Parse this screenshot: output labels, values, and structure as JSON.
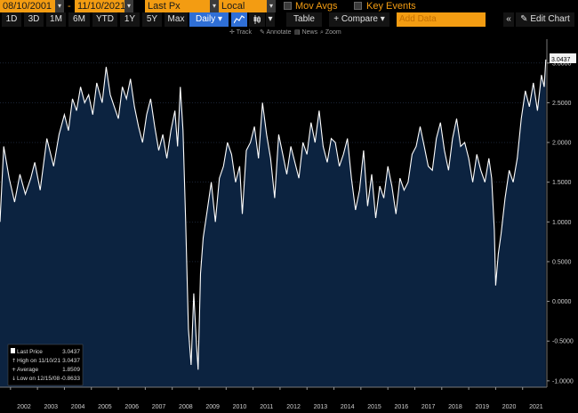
{
  "toolbar": {
    "start_date": "08/10/2001",
    "end_date": "11/10/2021",
    "separator": "-",
    "field": "Last Px",
    "currency": "Local CCY",
    "mov_avgs": "Mov Avgs",
    "key_events": "Key Events",
    "ranges": [
      "1D",
      "3D",
      "1M",
      "6M",
      "YTD",
      "1Y",
      "5Y",
      "Max"
    ],
    "freq": "Daily",
    "table": "Table",
    "compare": "+ Compare",
    "add_data_placeholder": "Add Data",
    "edit_chart": "Edit Chart",
    "tools": [
      "Track",
      "Annotate",
      "News",
      "Zoom"
    ]
  },
  "colors": {
    "accent": "#f39c12",
    "plot_bg": "#0c2340",
    "line": "#ffffff",
    "selected": "#2f6fd6"
  },
  "chart_data": {
    "type": "line",
    "title": "",
    "xlabel": "",
    "ylabel": "",
    "ylim": [
      -1.08,
      3.3
    ],
    "y_ticks": [
      "3.0000",
      "2.5000",
      "2.0000",
      "1.5000",
      "1.0000",
      "0.5000",
      "0.0000",
      "-0.5000",
      "-1.0000"
    ],
    "x_ticks": [
      "2002",
      "2003",
      "2004",
      "2005",
      "2006",
      "2007",
      "2008",
      "2009",
      "2010",
      "2011",
      "2012",
      "2013",
      "2014",
      "2015",
      "2016",
      "2017",
      "2018",
      "2019",
      "2020",
      "2021"
    ],
    "last_value_label": "3.0437",
    "series": [
      {
        "x": [
          2001.61,
          2001.75,
          2001.95,
          2002.15,
          2002.35,
          2002.55,
          2002.75,
          2002.9,
          2003.1,
          2003.35,
          2003.6,
          2003.8,
          2004.0,
          2004.15,
          2004.3,
          2004.45,
          2004.6,
          2004.75,
          2004.9,
          2005.05,
          2005.2,
          2005.4,
          2005.55,
          2005.7,
          2005.85,
          2006.0,
          2006.15,
          2006.3,
          2006.45,
          2006.6,
          2006.75,
          2006.9,
          2007.05,
          2007.2,
          2007.35,
          2007.5,
          2007.65,
          2007.8,
          2007.95,
          2008.1,
          2008.2,
          2008.3,
          2008.4,
          2008.5,
          2008.6,
          2008.7,
          2008.8,
          2008.9,
          2008.96,
          2009.05,
          2009.15,
          2009.3,
          2009.45,
          2009.6,
          2009.75,
          2009.9,
          2010.05,
          2010.2,
          2010.35,
          2010.5,
          2010.6,
          2010.75,
          2010.9,
          2011.05,
          2011.2,
          2011.35,
          2011.5,
          2011.65,
          2011.8,
          2011.95,
          2012.1,
          2012.25,
          2012.4,
          2012.55,
          2012.7,
          2012.85,
          2013.0,
          2013.15,
          2013.3,
          2013.45,
          2013.6,
          2013.75,
          2013.9,
          2014.05,
          2014.2,
          2014.35,
          2014.5,
          2014.65,
          2014.8,
          2014.95,
          2015.1,
          2015.25,
          2015.4,
          2015.55,
          2015.7,
          2015.85,
          2016.0,
          2016.15,
          2016.3,
          2016.45,
          2016.6,
          2016.75,
          2016.9,
          2017.05,
          2017.2,
          2017.35,
          2017.5,
          2017.65,
          2017.8,
          2017.95,
          2018.1,
          2018.25,
          2018.4,
          2018.55,
          2018.7,
          2018.85,
          2019.0,
          2019.15,
          2019.3,
          2019.45,
          2019.6,
          2019.75,
          2019.85,
          2019.95,
          2020.0,
          2020.1,
          2020.2,
          2020.35,
          2020.5,
          2020.65,
          2020.8,
          2020.95,
          2021.1,
          2021.25,
          2021.4,
          2021.55,
          2021.7,
          2021.8,
          2021.86
        ],
        "y": [
          1.0,
          1.95,
          1.55,
          1.25,
          1.6,
          1.35,
          1.55,
          1.75,
          1.4,
          2.05,
          1.7,
          2.1,
          2.35,
          2.15,
          2.55,
          2.4,
          2.7,
          2.5,
          2.6,
          2.35,
          2.75,
          2.5,
          2.95,
          2.6,
          2.45,
          2.3,
          2.7,
          2.55,
          2.8,
          2.45,
          2.2,
          2.0,
          2.35,
          2.55,
          2.2,
          1.9,
          2.1,
          1.8,
          2.15,
          2.4,
          1.95,
          2.7,
          2.15,
          1.0,
          -0.35,
          -0.8,
          0.1,
          -0.55,
          -0.86,
          0.35,
          0.8,
          1.15,
          1.5,
          1.0,
          1.55,
          1.7,
          2.0,
          1.85,
          1.5,
          1.7,
          1.1,
          1.9,
          2.0,
          2.2,
          1.8,
          2.5,
          2.1,
          1.8,
          1.3,
          2.1,
          1.85,
          1.6,
          1.95,
          1.75,
          1.55,
          2.0,
          1.85,
          2.25,
          2.0,
          2.4,
          1.95,
          1.75,
          2.05,
          2.0,
          1.7,
          1.85,
          2.05,
          1.55,
          1.15,
          1.4,
          1.9,
          1.2,
          1.6,
          1.05,
          1.45,
          1.3,
          1.7,
          1.45,
          1.1,
          1.55,
          1.4,
          1.5,
          1.85,
          1.95,
          2.2,
          1.95,
          1.7,
          1.65,
          2.05,
          2.25,
          1.9,
          1.65,
          2.05,
          2.3,
          1.95,
          2.0,
          1.8,
          1.5,
          1.85,
          1.65,
          1.5,
          1.8,
          1.55,
          0.9,
          0.2,
          0.6,
          0.85,
          1.3,
          1.65,
          1.5,
          1.8,
          2.3,
          2.65,
          2.45,
          2.75,
          2.4,
          2.85,
          2.7,
          3.0437
        ]
      }
    ],
    "legend": {
      "rows": [
        {
          "label": "Last Price",
          "value": "3.0437"
        },
        {
          "label": "High on 11/10/21",
          "value": "3.0437"
        },
        {
          "label": "Average",
          "value": "1.8509"
        },
        {
          "label": "Low on 12/15/08",
          "value": "-0.8633"
        }
      ]
    }
  }
}
